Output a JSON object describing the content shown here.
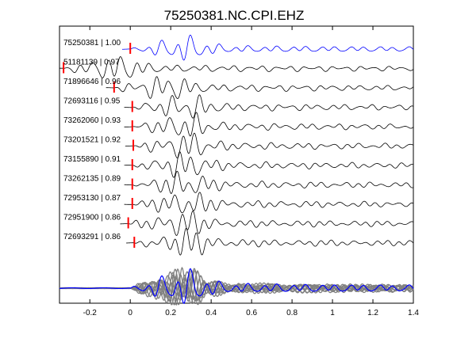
{
  "chart_data": {
    "type": "line",
    "title": "75250381.NC.CPI.EHZ",
    "xlabel": "",
    "ylabel": "",
    "xlim": [
      -0.35,
      1.4
    ],
    "x_ticks": [
      -0.2,
      0,
      0.2,
      0.4,
      0.6,
      0.8,
      1.0,
      1.2,
      1.4
    ],
    "x_tick_labels": [
      "-0.2",
      "0",
      "0.2",
      "0.4",
      "0.6",
      "0.8",
      "1",
      "1.2",
      "1.4"
    ],
    "grid": false,
    "traces": [
      {
        "event_id": "75250381",
        "cc": "1.00",
        "label": "75250381 | 1.00",
        "pick_time": 0.0,
        "color": "#0000ff"
      },
      {
        "event_id": "51181139",
        "cc": "0.97",
        "label": "51181139 | 0.97",
        "pick_time": -0.33,
        "color": "#000000"
      },
      {
        "event_id": "71896646",
        "cc": "0.96",
        "label": "71896646 | 0.96",
        "pick_time": -0.08,
        "color": "#000000"
      },
      {
        "event_id": "72693116",
        "cc": "0.95",
        "label": "72693116 | 0.95",
        "pick_time": 0.01,
        "color": "#000000"
      },
      {
        "event_id": "73262060",
        "cc": "0.93",
        "label": "73262060 | 0.93",
        "pick_time": 0.01,
        "color": "#000000"
      },
      {
        "event_id": "73201521",
        "cc": "0.92",
        "label": "73201521 | 0.92",
        "pick_time": 0.015,
        "color": "#000000"
      },
      {
        "event_id": "73155890",
        "cc": "0.91",
        "label": "73155890 | 0.91",
        "pick_time": 0.01,
        "color": "#000000"
      },
      {
        "event_id": "73262135",
        "cc": "0.89",
        "label": "73262135 | 0.89",
        "pick_time": 0.01,
        "color": "#000000"
      },
      {
        "event_id": "72953130",
        "cc": "0.87",
        "label": "72953130 | 0.87",
        "pick_time": 0.01,
        "color": "#000000"
      },
      {
        "event_id": "72951900",
        "cc": "0.86",
        "label": "72951900 | 0.86",
        "pick_time": -0.01,
        "color": "#000000"
      },
      {
        "event_id": "72693291",
        "cc": "0.86",
        "label": "72693291 | 0.86",
        "pick_time": 0.02,
        "color": "#000000"
      }
    ],
    "stack": {
      "overlay_color": "#808080",
      "reference_color": "#0000ff"
    },
    "pick_color": "#ff0000"
  }
}
